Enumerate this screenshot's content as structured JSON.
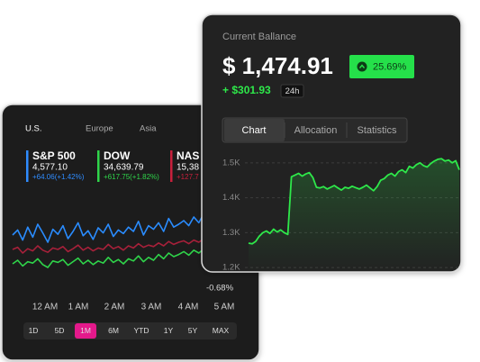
{
  "back_card": {
    "tabs": [
      "U.S.",
      "Europe",
      "Asia"
    ],
    "selected_tab": 0,
    "indices": [
      {
        "name": "S&P 500",
        "value": "4,577.10",
        "change": "+64.06(+1.42%)",
        "color": "#2f8cff"
      },
      {
        "name": "DOW",
        "value": "34,639.79",
        "change": "+617.75(+1.82%)",
        "color": "#2fd44a"
      },
      {
        "name": "NAS",
        "value": "15,38",
        "change": "+127.7",
        "color": "#c8203c"
      }
    ],
    "chart": {
      "type": "line",
      "ylim": [
        0,
        100
      ],
      "series": [
        {
          "color": "#2a8cff",
          "values": [
            55,
            62,
            48,
            66,
            52,
            70,
            58,
            45,
            63,
            56,
            68,
            50,
            60,
            72,
            54,
            61,
            49,
            65,
            58,
            70,
            53,
            62,
            57,
            66,
            60,
            74,
            55,
            68,
            63,
            72,
            60,
            78,
            66,
            70,
            75,
            68,
            80,
            72,
            85,
            78
          ]
        },
        {
          "color": "#a8203a",
          "values": [
            35,
            38,
            30,
            36,
            33,
            40,
            34,
            31,
            37,
            35,
            39,
            32,
            36,
            41,
            34,
            38,
            33,
            37,
            35,
            42,
            36,
            39,
            34,
            40,
            37,
            43,
            38,
            41,
            39,
            44,
            40,
            46,
            42,
            45,
            47,
            43,
            48,
            45,
            50,
            48
          ]
        },
        {
          "color": "#2fd44a",
          "values": [
            15,
            20,
            12,
            18,
            16,
            22,
            14,
            10,
            19,
            17,
            21,
            13,
            18,
            23,
            15,
            20,
            14,
            19,
            16,
            24,
            17,
            21,
            15,
            22,
            19,
            26,
            18,
            24,
            20,
            28,
            22,
            30,
            25,
            28,
            32,
            27,
            34,
            30,
            36,
            33
          ]
        }
      ],
      "x_labels": [
        "12 AM",
        "1 AM",
        "2 AM",
        "3 AM",
        "4 AM",
        "5 AM"
      ]
    },
    "change_label": "-0.68%",
    "ranges": [
      "1D",
      "5D",
      "1M",
      "6M",
      "YTD",
      "1Y",
      "5Y",
      "MAX"
    ],
    "selected_range": 2,
    "accent": "#e4198b"
  },
  "front_card": {
    "label": "Current Ballance",
    "balance": "$ 1,474.91",
    "badge": "25.69%",
    "gain": "+ $301.93",
    "period": "24h",
    "tabs": [
      "Chart",
      "Allocation",
      "Statistics"
    ],
    "selected_tab": 0,
    "chart": {
      "type": "line",
      "color": "#2ee84a",
      "grid": true,
      "ylim": [
        1185,
        1515
      ],
      "yticks": [
        {
          "value": 1500,
          "label": "1.5K"
        },
        {
          "value": 1400,
          "label": "1.4K"
        },
        {
          "value": 1300,
          "label": "1.3K"
        },
        {
          "value": 1200,
          "label": "1.2K"
        }
      ],
      "values": [
        1270,
        1268,
        1275,
        1290,
        1300,
        1305,
        1298,
        1310,
        1302,
        1308,
        1300,
        1295,
        1460,
        1465,
        1470,
        1462,
        1468,
        1472,
        1458,
        1430,
        1428,
        1432,
        1425,
        1430,
        1435,
        1428,
        1422,
        1430,
        1427,
        1433,
        1429,
        1425,
        1430,
        1436,
        1428,
        1420,
        1432,
        1450,
        1455,
        1465,
        1470,
        1462,
        1475,
        1480,
        1472,
        1490,
        1485,
        1495,
        1500,
        1492,
        1488,
        1498,
        1505,
        1510,
        1512,
        1505,
        1508,
        1500,
        1506,
        1480
      ]
    }
  }
}
